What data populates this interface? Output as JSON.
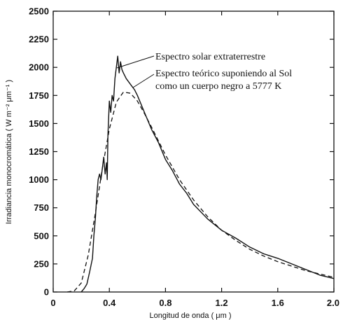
{
  "chart_data": {
    "type": "line",
    "title": "",
    "xlabel": "Longitud de onda  ( μm )",
    "ylabel": "Irradiancia monocromática  ( W m⁻² μm⁻¹ )",
    "xlim": [
      0,
      2.0
    ],
    "ylim": [
      0,
      2500
    ],
    "xticks": [
      0,
      0.4,
      0.8,
      1.2,
      1.6,
      2.0
    ],
    "xtick_labels": [
      "0",
      "0.4",
      "0.8",
      "1.2",
      "1.6",
      "2.0"
    ],
    "yticks": [
      0,
      250,
      500,
      750,
      1000,
      1250,
      1500,
      1750,
      2000,
      2250,
      2500
    ],
    "ytick_labels": [
      "0",
      "250",
      "500",
      "750",
      "1000",
      "1250",
      "1500",
      "1750",
      "2000",
      "2250",
      "2500"
    ],
    "series": [
      {
        "name": "Espectro solar extraterrestre",
        "style": "solid",
        "x": [
          0.2,
          0.22,
          0.24,
          0.26,
          0.28,
          0.29,
          0.3,
          0.31,
          0.32,
          0.33,
          0.34,
          0.35,
          0.36,
          0.37,
          0.38,
          0.385,
          0.39,
          0.4,
          0.41,
          0.42,
          0.43,
          0.44,
          0.45,
          0.46,
          0.47,
          0.48,
          0.49,
          0.5,
          0.52,
          0.55,
          0.58,
          0.6,
          0.65,
          0.7,
          0.75,
          0.8,
          0.85,
          0.9,
          0.95,
          1.0,
          1.1,
          1.2,
          1.3,
          1.4,
          1.5,
          1.6,
          1.7,
          1.8,
          1.9,
          2.0
        ],
        "y": [
          0,
          30,
          70,
          180,
          300,
          500,
          650,
          850,
          1000,
          1050,
          1000,
          1100,
          1200,
          1050,
          1150,
          1000,
          1400,
          1700,
          1600,
          1750,
          1700,
          1900,
          2000,
          2100,
          1950,
          2050,
          1980,
          1950,
          1900,
          1850,
          1800,
          1750,
          1600,
          1450,
          1330,
          1180,
          1080,
          960,
          880,
          780,
          650,
          550,
          480,
          400,
          340,
          300,
          250,
          200,
          150,
          120
        ]
      },
      {
        "name": "Espectro teórico suponiendo al Sol como un cuerpo negro a 5777  K",
        "style": "dashed",
        "x": [
          0.1,
          0.15,
          0.2,
          0.25,
          0.3,
          0.35,
          0.4,
          0.45,
          0.5,
          0.55,
          0.6,
          0.65,
          0.7,
          0.8,
          0.9,
          1.0,
          1.1,
          1.2,
          1.3,
          1.4,
          1.5,
          1.6,
          1.7,
          1.8,
          1.9,
          2.0
        ],
        "y": [
          0,
          10,
          80,
          330,
          700,
          1100,
          1450,
          1690,
          1780,
          1770,
          1700,
          1590,
          1470,
          1220,
          1000,
          820,
          670,
          550,
          460,
          380,
          320,
          270,
          230,
          190,
          160,
          130
        ]
      }
    ],
    "annotations": [
      "Espectro solar extraterrestre",
      "Espectro teórico suponiendo al Sol",
      "como un cuerpo negro a 5777  K"
    ],
    "grid": false,
    "legend": "none"
  }
}
